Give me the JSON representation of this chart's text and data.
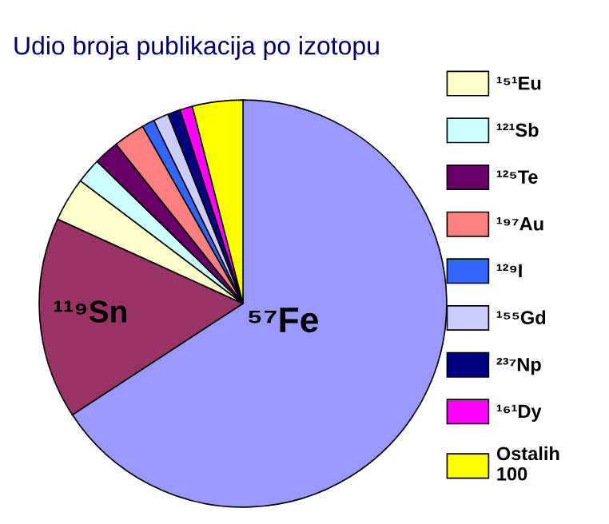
{
  "chart_data": {
    "type": "pie",
    "title": "Udio broja publikacija po izotopu",
    "categories": [
      null,
      null,
      "¹⁵¹Eu",
      "¹²¹Sb",
      "¹²⁵Te",
      "¹⁹⁷Au",
      "¹²⁹I",
      "¹⁵⁵Gd",
      "²³⁷Np",
      "¹⁶¹Dy",
      "Ostalih\n100"
    ],
    "values": [
      65.8,
      16,
      3.5,
      2,
      2,
      2.5,
      1,
      1.2,
      1,
      1,
      4
    ],
    "colors": [
      "#9999ff",
      "#993366",
      "#ffffcc",
      "#ccffff",
      "#660066",
      "#ff8080",
      "#3366ff",
      "#ccccff",
      "#000080",
      "#ff00ff",
      "#ffff00"
    ],
    "annotations": [
      "⁵⁷Fe",
      "¹¹⁹Sn"
    ],
    "legend": "right"
  }
}
